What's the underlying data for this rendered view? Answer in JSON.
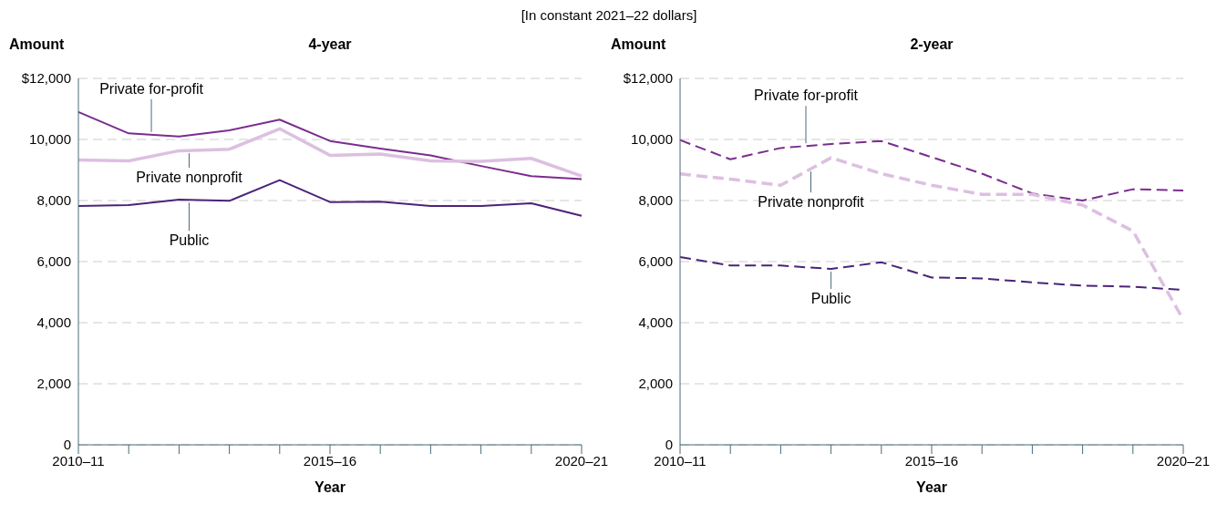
{
  "chart_data": [
    {
      "type": "line",
      "subtitle": "[In constant 2021–22 dollars]",
      "title": "4-year",
      "ylabel": "Amount",
      "xlabel": "Year",
      "line_style": "solid",
      "grid": "y",
      "marker": "none",
      "categories": [
        "2010–11",
        null,
        null,
        null,
        null,
        "2015–16",
        null,
        null,
        null,
        null,
        "2020–21"
      ],
      "ylim": [
        0,
        12000
      ],
      "yticks": [
        {
          "value": 0,
          "label": "0"
        },
        {
          "value": 2000,
          "label": "2,000"
        },
        {
          "value": 4000,
          "label": "4,000"
        },
        {
          "value": 6000,
          "label": "6,000"
        },
        {
          "value": 8000,
          "label": "8,000"
        },
        {
          "value": 10000,
          "label": "10,000"
        },
        {
          "value": 12000,
          "label": "$12,000"
        }
      ],
      "series": [
        {
          "name": "Private for-profit",
          "color": "#7b2d8e",
          "values": [
            10900,
            10200,
            10100,
            10300,
            10650,
            9950,
            9700,
            9480,
            9130,
            8800,
            8700
          ]
        },
        {
          "name": "Private nonprofit",
          "color": "#dcc0e0",
          "values": [
            9330,
            9300,
            9630,
            9680,
            10350,
            9480,
            9520,
            9300,
            9280,
            9380,
            8800
          ]
        },
        {
          "name": "Public",
          "color": "#4b2379",
          "values": [
            7820,
            7850,
            8030,
            7990,
            8670,
            7950,
            7960,
            7820,
            7820,
            7910,
            7500
          ]
        }
      ]
    },
    {
      "type": "line",
      "title": "2-year",
      "ylabel": "Amount",
      "xlabel": "Year",
      "line_style": "dashed",
      "grid": "y",
      "marker": "none",
      "categories": [
        "2010–11",
        null,
        null,
        null,
        null,
        "2015–16",
        null,
        null,
        null,
        null,
        "2020–21"
      ],
      "ylim": [
        0,
        12000
      ],
      "yticks": [
        {
          "value": 0,
          "label": "0"
        },
        {
          "value": 2000,
          "label": "2,000"
        },
        {
          "value": 4000,
          "label": "4,000"
        },
        {
          "value": 6000,
          "label": "6,000"
        },
        {
          "value": 8000,
          "label": "8,000"
        },
        {
          "value": 10000,
          "label": "10,000"
        },
        {
          "value": 12000,
          "label": "$12,000"
        }
      ],
      "series": [
        {
          "name": "Private for-profit",
          "color": "#7b2d8e",
          "values": [
            9980,
            9350,
            9720,
            9850,
            9950,
            9420,
            8880,
            8230,
            8000,
            8370,
            8330
          ]
        },
        {
          "name": "Private nonprofit",
          "color": "#dcc0e0",
          "values": [
            8870,
            8700,
            8500,
            9400,
            8880,
            8500,
            8200,
            8200,
            7850,
            7000,
            4100
          ]
        },
        {
          "name": "Public",
          "color": "#4b2379",
          "values": [
            6150,
            5870,
            5870,
            5760,
            5980,
            5480,
            5450,
            5320,
            5210,
            5180,
            5070
          ]
        }
      ]
    }
  ]
}
